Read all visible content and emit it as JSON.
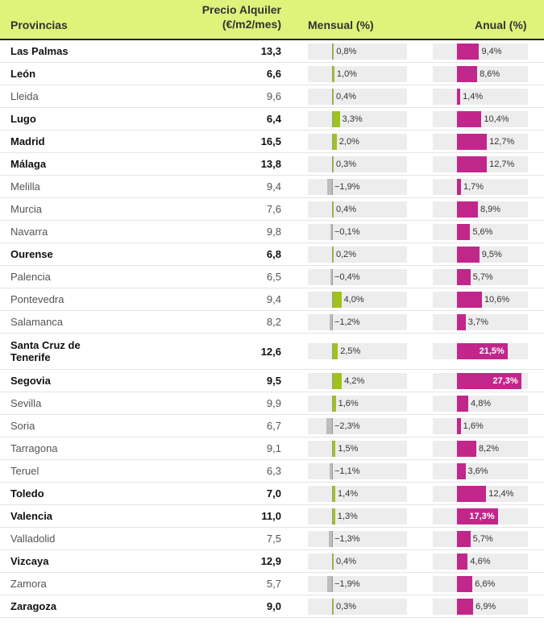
{
  "header": {
    "provincias": "Provincias",
    "precio_line1": "Precio Alquiler",
    "precio_line2": "(€/m2/mes)",
    "mensual": "Mensual (%)",
    "anual": "Anual (%)"
  },
  "colors": {
    "header_bg": "#dff27a",
    "mensual_pos": "#9fc31a",
    "mensual_neg": "#bdbdbd",
    "anual": "#c1278b"
  },
  "rows": [
    {
      "name": "Las Palmas",
      "price": "13,3",
      "mensual": 0.8,
      "mensual_label": "0,8%",
      "anual": 9.4,
      "anual_label": "9,4%",
      "bold": true
    },
    {
      "name": "León",
      "price": "6,6",
      "mensual": 1.0,
      "mensual_label": "1,0%",
      "anual": 8.6,
      "anual_label": "8,6%",
      "bold": true
    },
    {
      "name": "Lleida",
      "price": "9,6",
      "mensual": 0.4,
      "mensual_label": "0,4%",
      "anual": 1.4,
      "anual_label": "1,4%",
      "bold": false
    },
    {
      "name": "Lugo",
      "price": "6,4",
      "mensual": 3.3,
      "mensual_label": "3,3%",
      "anual": 10.4,
      "anual_label": "10,4%",
      "bold": true
    },
    {
      "name": "Madrid",
      "price": "16,5",
      "mensual": 2.0,
      "mensual_label": "2,0%",
      "anual": 12.7,
      "anual_label": "12,7%",
      "bold": true
    },
    {
      "name": "Málaga",
      "price": "13,8",
      "mensual": 0.3,
      "mensual_label": "0,3%",
      "anual": 12.7,
      "anual_label": "12,7%",
      "bold": true
    },
    {
      "name": "Melilla",
      "price": "9,4",
      "mensual": -1.9,
      "mensual_label": "−1,9%",
      "anual": 1.7,
      "anual_label": "1,7%",
      "bold": false
    },
    {
      "name": "Murcia",
      "price": "7,6",
      "mensual": 0.4,
      "mensual_label": "0,4%",
      "anual": 8.9,
      "anual_label": "8,9%",
      "bold": false
    },
    {
      "name": "Navarra",
      "price": "9,8",
      "mensual": -0.1,
      "mensual_label": "−0,1%",
      "anual": 5.6,
      "anual_label": "5,6%",
      "bold": false
    },
    {
      "name": "Ourense",
      "price": "6,8",
      "mensual": 0.2,
      "mensual_label": "0,2%",
      "anual": 9.5,
      "anual_label": "9,5%",
      "bold": true
    },
    {
      "name": "Palencia",
      "price": "6,5",
      "mensual": -0.4,
      "mensual_label": "−0,4%",
      "anual": 5.7,
      "anual_label": "5,7%",
      "bold": false
    },
    {
      "name": "Pontevedra",
      "price": "9,4",
      "mensual": 4.0,
      "mensual_label": "4,0%",
      "anual": 10.6,
      "anual_label": "10,6%",
      "bold": false
    },
    {
      "name": "Salamanca",
      "price": "8,2",
      "mensual": -1.2,
      "mensual_label": "−1,2%",
      "anual": 3.7,
      "anual_label": "3,7%",
      "bold": false
    },
    {
      "name": "Santa Cruz de Tenerife",
      "price": "12,6",
      "mensual": 2.5,
      "mensual_label": "2,5%",
      "anual": 21.5,
      "anual_label": "21,5%",
      "bold": true,
      "tall": true
    },
    {
      "name": "Segovia",
      "price": "9,5",
      "mensual": 4.2,
      "mensual_label": "4,2%",
      "anual": 27.3,
      "anual_label": "27,3%",
      "bold": true
    },
    {
      "name": "Sevilla",
      "price": "9,9",
      "mensual": 1.6,
      "mensual_label": "1,6%",
      "anual": 4.8,
      "anual_label": "4,8%",
      "bold": false
    },
    {
      "name": "Soria",
      "price": "6,7",
      "mensual": -2.3,
      "mensual_label": "−2,3%",
      "anual": 1.6,
      "anual_label": "1,6%",
      "bold": false
    },
    {
      "name": "Tarragona",
      "price": "9,1",
      "mensual": 1.5,
      "mensual_label": "1,5%",
      "anual": 8.2,
      "anual_label": "8,2%",
      "bold": false
    },
    {
      "name": "Teruel",
      "price": "6,3",
      "mensual": -1.1,
      "mensual_label": "−1,1%",
      "anual": 3.6,
      "anual_label": "3,6%",
      "bold": false
    },
    {
      "name": "Toledo",
      "price": "7,0",
      "mensual": 1.4,
      "mensual_label": "1,4%",
      "anual": 12.4,
      "anual_label": "12,4%",
      "bold": true
    },
    {
      "name": "Valencia",
      "price": "11,0",
      "mensual": 1.3,
      "mensual_label": "1,3%",
      "anual": 17.3,
      "anual_label": "17,3%",
      "bold": true
    },
    {
      "name": "Valladolid",
      "price": "7,5",
      "mensual": -1.3,
      "mensual_label": "−1,3%",
      "anual": 5.7,
      "anual_label": "5,7%",
      "bold": false
    },
    {
      "name": "Vizcaya",
      "price": "12,9",
      "mensual": 0.4,
      "mensual_label": "0,4%",
      "anual": 4.6,
      "anual_label": "4,6%",
      "bold": true
    },
    {
      "name": "Zamora",
      "price": "5,7",
      "mensual": -1.9,
      "mensual_label": "−1,9%",
      "anual": 6.6,
      "anual_label": "6,6%",
      "bold": false
    },
    {
      "name": "Zaragoza",
      "price": "9,0",
      "mensual": 0.3,
      "mensual_label": "0,3%",
      "anual": 6.9,
      "anual_label": "6,9%",
      "bold": true
    }
  ]
}
